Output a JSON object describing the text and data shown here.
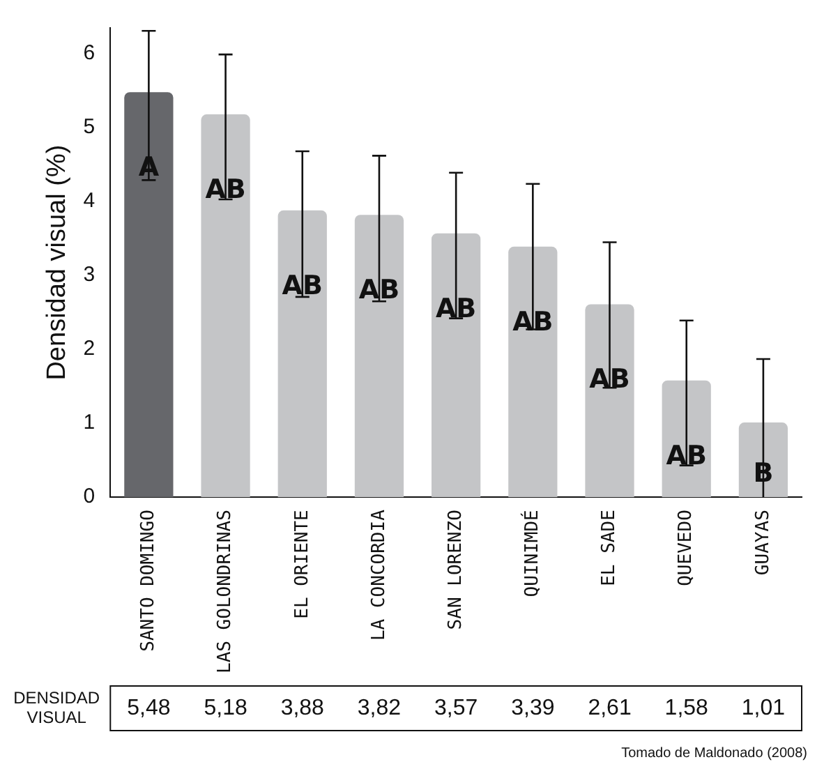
{
  "chart_data": {
    "type": "bar",
    "ylabel": "Densidad visual (%)",
    "categories": [
      "SANTO DOMINGO",
      "LAS GOLONDRINAS",
      "EL ORIENTE",
      "LA CONCORDIA",
      "SAN LORENZO",
      "QUINIMDÉ",
      "EL SADE",
      "QUEVEDO",
      "GUAYAS"
    ],
    "values": [
      5.48,
      5.18,
      3.88,
      3.82,
      3.57,
      3.39,
      2.61,
      1.58,
      1.01
    ],
    "colors": [
      "#66676b",
      "#c4c5c7",
      "#c4c5c7",
      "#c4c5c7",
      "#c4c5c7",
      "#c4c5c7",
      "#c4c5c7",
      "#c4c5c7",
      "#c4c5c7"
    ],
    "errors": [
      [
        4.29,
        6.31
      ],
      [
        4.03,
        5.99
      ],
      [
        2.71,
        4.68
      ],
      [
        2.65,
        4.62
      ],
      [
        2.42,
        4.39
      ],
      [
        2.27,
        4.24
      ],
      [
        1.48,
        3.45
      ],
      [
        0.43,
        2.39
      ],
      [
        0,
        1.87
      ]
    ],
    "value_labels": [
      "5,48",
      "5,18",
      "3,88",
      "3,82",
      "3,57",
      "3,39",
      "2,61",
      "1,58",
      "1,01"
    ],
    "ylim": [
      0,
      6.35
    ],
    "yticks": [
      0,
      1,
      2,
      3,
      4,
      5,
      6
    ],
    "grid": false,
    "legend": false,
    "annotations": [
      "A",
      "AB",
      "AB",
      "AB",
      "AB",
      "AB",
      "AB",
      "AB",
      "B",
      "DENSIDAD VISUAL",
      "Tomado de Maldonado (2008)"
    ]
  }
}
